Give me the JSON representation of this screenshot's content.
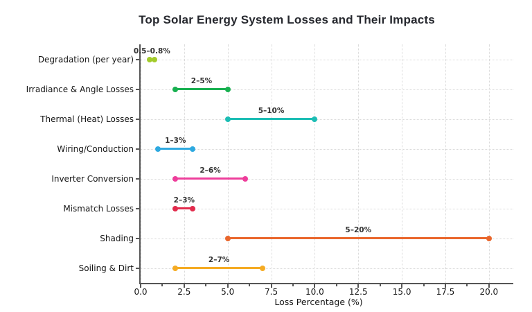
{
  "chart_data": {
    "type": "dumbbell_range",
    "orientation": "horizontal",
    "title": "Top Solar Energy System Losses and Their Impacts",
    "xlabel": "Loss Percentage (%)",
    "xlim": [
      0,
      21.4
    ],
    "grid": "dotted",
    "legend": "none",
    "xticks": {
      "values": [
        0,
        2.5,
        5,
        7.5,
        10,
        12.5,
        15,
        17.5,
        20
      ],
      "labels": [
        "0.0",
        "2.5",
        "5.0",
        "7.5",
        "10.0",
        "12.5",
        "15.0",
        "17.5",
        "20.0"
      ],
      "minor_values": [
        1.25,
        3.75,
        6.25,
        8.75,
        11.25,
        13.75,
        16.25,
        18.75
      ]
    },
    "rows": [
      {
        "category": "Degradation (per year)",
        "min": 0.5,
        "max": 0.8,
        "range_label": "0.5–0.8%",
        "color": "#a3cb2b"
      },
      {
        "category": "Irradiance & Angle Losses",
        "min": 2,
        "max": 5,
        "range_label": "2–5%",
        "color": "#18b050"
      },
      {
        "category": "Thermal (Heat) Losses",
        "min": 5,
        "max": 10,
        "range_label": "5–10%",
        "color": "#1cbdb4"
      },
      {
        "category": "Wiring/Conduction",
        "min": 1,
        "max": 3,
        "range_label": "1–3%",
        "color": "#2ea9e0"
      },
      {
        "category": "Inverter Conversion",
        "min": 2,
        "max": 6,
        "range_label": "2–6%",
        "color": "#ee3d9b"
      },
      {
        "category": "Mismatch Losses",
        "min": 2,
        "max": 3,
        "range_label": "2–3%",
        "color": "#e22b4c"
      },
      {
        "category": "Shading",
        "min": 5,
        "max": 20,
        "range_label": "5–20%",
        "color": "#e9662c"
      },
      {
        "category": "Soiling & Dirt",
        "min": 2,
        "max": 7,
        "range_label": "2–7%",
        "color": "#f5ab23"
      }
    ],
    "style_colors": {
      "background": "#ffffff",
      "grid": "#d9d9d9",
      "spine": "#555555",
      "title_text": "#26282e",
      "label_text": "#151515",
      "range_label_text": "#333333"
    }
  }
}
